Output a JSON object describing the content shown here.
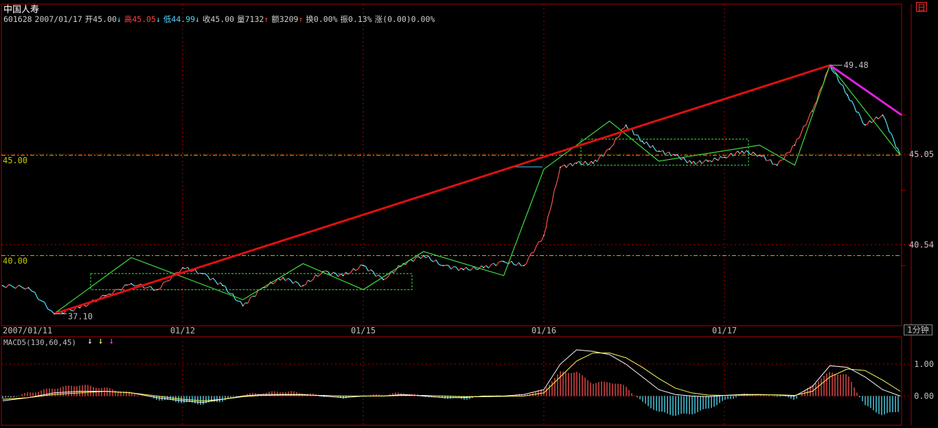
{
  "header": {
    "stock_name": "中国人寿",
    "code": "601628",
    "date": "2007/01/17",
    "open": "开45.00",
    "open_arrow": "↓",
    "high": "高45.05",
    "high_arrow": "↓",
    "low": "低44.99",
    "low_arrow": "↓",
    "close": "收45.00",
    "volume": "量7132",
    "volume_arrow": "↑",
    "amount": "额3209",
    "amount_arrow": "↑",
    "turnover": "换0.00%",
    "amplitude": "振0.13%",
    "change": "涨(0.00)0.00%"
  },
  "window_icon": "日",
  "period_button": "1分钟",
  "price_axis": {
    "labels": [
      "45.05",
      "40.54"
    ],
    "guide_labels": [
      "45.00",
      "40.00"
    ]
  },
  "date_axis": [
    "2007/01/11",
    "01/12",
    "01/15",
    "01/16",
    "01/17"
  ],
  "annotations": {
    "high": "49.48",
    "low": "37.10"
  },
  "macd": {
    "title": "MACD5(130,60,45)",
    "arrows": [
      "↓",
      "↓",
      "↓"
    ],
    "arrow_colors": [
      "#ffffff",
      "#ffff40",
      "#ff40ff"
    ],
    "axis_labels": [
      "1.00",
      "0.00"
    ]
  },
  "colors": {
    "background": "#000000",
    "frame": "#b00000",
    "up": "#ff5050",
    "down": "#50e8ff",
    "zigzag": "#40e040",
    "trendline": "#e01010",
    "trendline2": "#e020e0",
    "guide": "#c8c800"
  },
  "chart_data": {
    "type": "line",
    "title": "",
    "xlabel": "",
    "ylabel": "",
    "ylim": [
      36.5,
      51.5
    ],
    "x": [
      "01/11",
      "01/11",
      "01/11",
      "01/11",
      "01/11",
      "01/11",
      "01/11",
      "01/12",
      "01/12",
      "01/12",
      "01/12",
      "01/12",
      "01/12",
      "01/12",
      "01/12",
      "01/12",
      "01/15",
      "01/15",
      "01/15",
      "01/15",
      "01/15",
      "01/15",
      "01/15",
      "01/15",
      "01/15",
      "01/16",
      "01/16",
      "01/16",
      "01/16",
      "01/16",
      "01/16",
      "01/16",
      "01/16",
      "01/16",
      "01/16",
      "01/16",
      "01/17",
      "01/17",
      "01/17",
      "01/17",
      "01/17",
      "01/17",
      "01/17",
      "01/17",
      "01/17",
      "01/17",
      "01/17"
    ],
    "series": [
      {
        "values": [
          38.5,
          38.4,
          37.1,
          37.4,
          38.0,
          38.6,
          38.3,
          39.4,
          39.1,
          38.5,
          37.5,
          38.4,
          38.9,
          38.5,
          39.2,
          39.0,
          39.5,
          38.8,
          39.6,
          40.0,
          39.5,
          39.3,
          39.4,
          39.7,
          39.5,
          41.0,
          44.4,
          44.6,
          44.6,
          45.3,
          46.5,
          45.7,
          45.2,
          45.0,
          44.6,
          44.7,
          44.9,
          45.2,
          45.0,
          44.5,
          45.5,
          47.2,
          49.48,
          48.0,
          46.5,
          47.0,
          45.0
        ]
      }
    ],
    "zigzag_points": [
      {
        "x": "01/11",
        "y": 37.1
      },
      {
        "x": "01/11",
        "y": 39.9
      },
      {
        "x": "01/12",
        "y": 37.8
      },
      {
        "x": "01/12",
        "y": 39.6
      },
      {
        "x": "01/12",
        "y": 38.3
      },
      {
        "x": "01/15",
        "y": 40.2
      },
      {
        "x": "01/15",
        "y": 39.0
      },
      {
        "x": "01/16",
        "y": 44.3
      },
      {
        "x": "01/16",
        "y": 46.7
      },
      {
        "x": "01/16",
        "y": 44.7
      },
      {
        "x": "01/17",
        "y": 45.5
      },
      {
        "x": "01/17",
        "y": 44.5
      },
      {
        "x": "01/17",
        "y": 49.48
      },
      {
        "x": "01/17",
        "y": 45.0
      }
    ],
    "trendlines": [
      {
        "from": {
          "x": "01/11",
          "y": 37.1
        },
        "to": {
          "x": "01/17",
          "y": 49.48
        }
      },
      {
        "from": {
          "x": "01/17",
          "y": 49.48
        },
        "to": {
          "x": "01/17",
          "y": 47.0
        }
      }
    ],
    "horizontal_levels": [
      45.0,
      40.0
    ],
    "consolidation_boxes": [
      {
        "y_top": 39.1,
        "y_bottom": 38.3
      },
      {
        "y_top": 45.8,
        "y_bottom": 44.5
      }
    ],
    "macd": {
      "ylim": [
        -0.7,
        1.6
      ],
      "histogram": [
        -0.1,
        0.1,
        0.25,
        0.35,
        0.25,
        0.1,
        -0.1,
        -0.2,
        -0.25,
        -0.15,
        0.05,
        0.1,
        0.15,
        0.1,
        0.0,
        -0.05,
        0.0,
        0.05,
        0.1,
        0.0,
        -0.05,
        -0.1,
        0.0,
        0.0,
        0.05,
        0.2,
        0.75,
        0.75,
        0.4,
        0.45,
        0.3,
        -0.2,
        -0.5,
        -0.6,
        -0.55,
        -0.4,
        -0.15,
        0.05,
        0.05,
        0.0,
        -0.1,
        0.35,
        0.75,
        0.65,
        -0.3,
        -0.6,
        -0.45
      ],
      "dif": [
        -0.15,
        -0.05,
        0.1,
        0.15,
        0.15,
        0.1,
        -0.05,
        -0.15,
        -0.2,
        -0.1,
        0.0,
        0.05,
        0.05,
        0.05,
        0.0,
        -0.05,
        0.0,
        0.0,
        0.05,
        0.0,
        -0.05,
        -0.05,
        0.0,
        0.0,
        0.05,
        0.2,
        1.0,
        1.45,
        1.4,
        1.3,
        1.0,
        0.6,
        0.2,
        0.05,
        0.0,
        -0.02,
        0.02,
        0.05,
        0.05,
        0.03,
        0.0,
        0.3,
        0.95,
        0.9,
        0.6,
        0.2,
        0.0
      ],
      "dea": [
        -0.1,
        -0.05,
        0.05,
        0.1,
        0.15,
        0.1,
        0.0,
        -0.1,
        -0.15,
        -0.1,
        -0.02,
        0.02,
        0.03,
        0.03,
        0.02,
        0.0,
        0.0,
        0.0,
        0.02,
        0.02,
        0.0,
        -0.02,
        -0.02,
        -0.01,
        0.0,
        0.1,
        0.6,
        1.1,
        1.35,
        1.35,
        1.2,
        0.9,
        0.55,
        0.25,
        0.1,
        0.03,
        0.02,
        0.03,
        0.04,
        0.04,
        0.02,
        0.15,
        0.6,
        0.85,
        0.8,
        0.5,
        0.15
      ]
    }
  }
}
